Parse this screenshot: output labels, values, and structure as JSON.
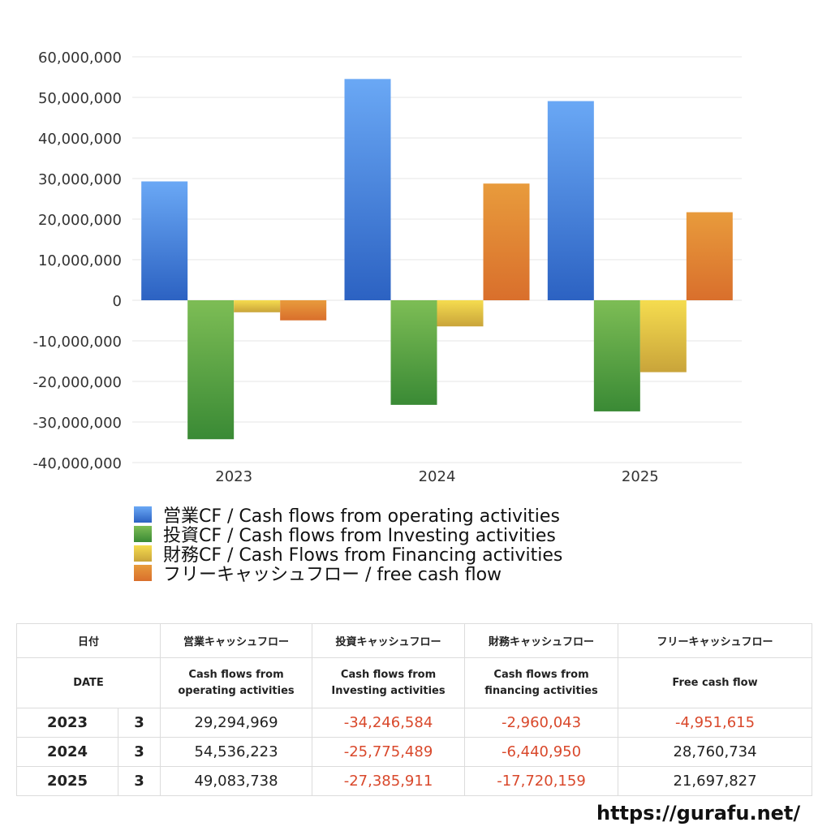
{
  "chart_data": {
    "type": "bar",
    "categories": [
      "2023",
      "2024",
      "2025"
    ],
    "series": [
      {
        "name": "営業CF / Cash flows from operating activities",
        "values": [
          29294969,
          54536223,
          49083738
        ],
        "color_top": "#6aa8f5",
        "color_bottom": "#2c62c2"
      },
      {
        "name": "投資CF / Cash flows from Investing activities",
        "values": [
          -34246584,
          -25775489,
          -27385911
        ],
        "color_top": "#7dbd55",
        "color_bottom": "#3a8a35"
      },
      {
        "name": "財務CF / Cash Flows from Financing activities",
        "values": [
          -2960043,
          -6440950,
          -17720159
        ],
        "color_top": "#f5dc4f",
        "color_bottom": "#c9a43a"
      },
      {
        "name": "フリーキャッシュフロー / free cash flow",
        "values": [
          -4951615,
          28760734,
          21697827
        ],
        "color_top": "#e89b3c",
        "color_bottom": "#d96f2c"
      }
    ],
    "yticks": [
      "60,000,000",
      "50,000,000",
      "40,000,000",
      "30,000,000",
      "20,000,000",
      "10,000,000",
      "0",
      "-10,000,000",
      "-20,000,000",
      "-30,000,000",
      "-40,000,000"
    ],
    "ylim": [
      -40000000,
      60000000
    ],
    "grid": true,
    "legend_position": "bottom"
  },
  "table": {
    "header_jp": [
      "日付",
      "営業キャッシュフロー",
      "投資キャッシュフロー",
      "財務キャッシュフロー",
      "フリーキャッシュフロー"
    ],
    "header_en": [
      "DATE",
      "Cash flows from operating activities",
      "Cash flows from Investing activities",
      "Cash flows from financing activities",
      "Free cash flow"
    ],
    "header_en_lines": [
      [
        "DATE"
      ],
      [
        "Cash flows from",
        "operating activities"
      ],
      [
        "Cash flows from",
        "Investing activities"
      ],
      [
        "Cash flows from",
        "financing activities"
      ],
      [
        "Free cash flow"
      ]
    ],
    "rows": [
      {
        "year": "2023",
        "month": "3",
        "values": [
          "29,294,969",
          "-34,246,584",
          "-2,960,043",
          "-4,951,615"
        ]
      },
      {
        "year": "2024",
        "month": "3",
        "values": [
          "54,536,223",
          "-25,775,489",
          "-6,440,950",
          "28,760,734"
        ]
      },
      {
        "year": "2025",
        "month": "3",
        "values": [
          "49,083,738",
          "-27,385,911",
          "-17,720,159",
          "21,697,827"
        ]
      }
    ]
  },
  "colors": {
    "negative_text": "#d9482b",
    "grid": "#e6e6e6"
  },
  "watermark": "https://gurafu.net/"
}
